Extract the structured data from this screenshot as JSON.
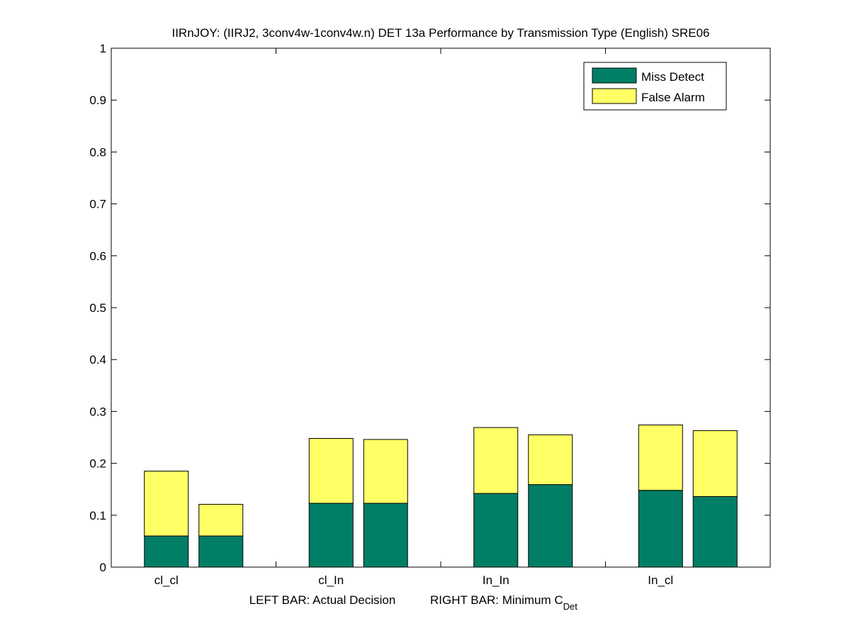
{
  "chart_data": {
    "type": "bar",
    "stacked": true,
    "title": "IIRnJOY: (IIRJ2, 3conv4w-1conv4w.n) DET 13a Performance by Transmission Type (English) SRE06",
    "xlabel_left": "LEFT BAR: Actual Decision",
    "xlabel_right_main": "RIGHT BAR: Minimum C",
    "xlabel_right_sub": "Det",
    "categories": [
      "cl_cl",
      "cl_In",
      "In_In",
      "In_cl"
    ],
    "bar_roles": [
      "Actual Decision",
      "Minimum C_Det"
    ],
    "ylim": [
      0,
      1
    ],
    "yticks": [
      "0",
      "0.1",
      "0.2",
      "0.3",
      "0.4",
      "0.5",
      "0.6",
      "0.7",
      "0.8",
      "0.9",
      "1"
    ],
    "ytick_values": [
      0,
      0.1,
      0.2,
      0.3,
      0.4,
      0.5,
      0.6,
      0.7,
      0.8,
      0.9,
      1
    ],
    "series": [
      {
        "name": "Miss Detect",
        "color": "#007f66",
        "actual": [
          0.06,
          0.123,
          0.142,
          0.148
        ],
        "minimum": [
          0.06,
          0.123,
          0.159,
          0.136
        ]
      },
      {
        "name": "False Alarm",
        "color": "#ffff66",
        "actual": [
          0.125,
          0.125,
          0.127,
          0.126
        ],
        "minimum": [
          0.061,
          0.123,
          0.096,
          0.127
        ]
      }
    ],
    "legend": {
      "position": "top-right"
    },
    "grid": false
  }
}
